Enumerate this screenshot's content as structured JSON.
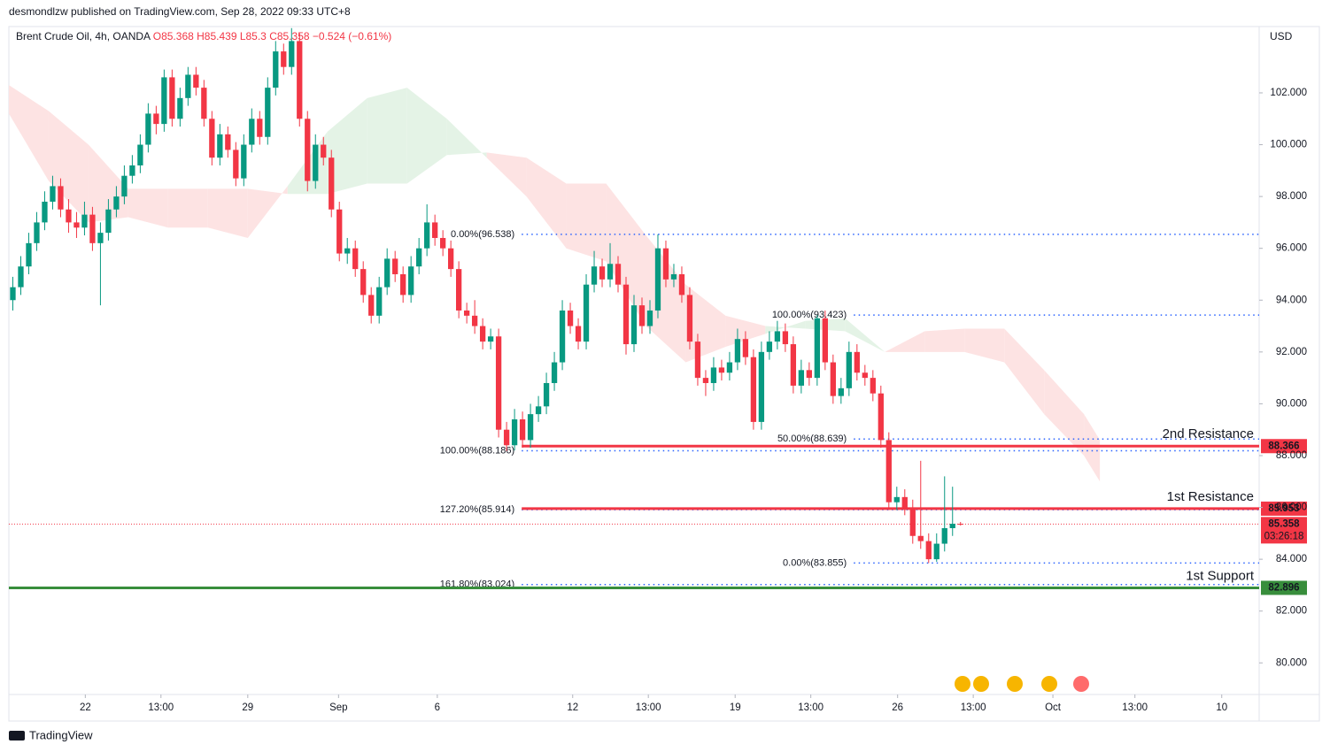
{
  "chart_data": {
    "type": "candlestick",
    "publisher": "desmondlzw published on TradingView.com, Sep 28, 2022 09:33 UTC+8",
    "symbol": "Brent Crude Oil, 4h, OANDA",
    "ohlc_text": "O85.368 H85.439 L85.3 C85.358",
    "change_text": "−0.524 (−0.61%)",
    "currency": "USD",
    "brand": "TradingView",
    "up_color": "#089981",
    "down_color": "#f23645",
    "xlim": [
      0,
      157
    ],
    "ylim": [
      78.78,
      104.56
    ],
    "yticks": [
      {
        "value": 80,
        "label": "80.000"
      },
      {
        "value": 82,
        "label": "82.000"
      },
      {
        "value": 84,
        "label": "84.000"
      },
      {
        "value": 86,
        "label": "86.000"
      },
      {
        "value": 88,
        "label": "88.000"
      },
      {
        "value": 90,
        "label": "90.000"
      },
      {
        "value": 92,
        "label": "92.000"
      },
      {
        "value": 94,
        "label": "94.000"
      },
      {
        "value": 96,
        "label": "96.000"
      },
      {
        "value": 98,
        "label": "98.000"
      },
      {
        "value": 100,
        "label": "100.000"
      },
      {
        "value": 102,
        "label": "102.000"
      }
    ],
    "xticks": [
      {
        "value": 9.6,
        "label": "22"
      },
      {
        "value": 19.1,
        "label": "13:00"
      },
      {
        "value": 30,
        "label": "29"
      },
      {
        "value": 41.4,
        "label": "Sep"
      },
      {
        "value": 53.8,
        "label": "6"
      },
      {
        "value": 70.8,
        "label": "12"
      },
      {
        "value": 80.3,
        "label": "13:00"
      },
      {
        "value": 91.2,
        "label": "19"
      },
      {
        "value": 100.7,
        "label": "13:00"
      },
      {
        "value": 111.6,
        "label": "26"
      },
      {
        "value": 121.1,
        "label": "13:00"
      },
      {
        "value": 131.1,
        "label": "Oct"
      },
      {
        "value": 141.4,
        "label": "13:00"
      },
      {
        "value": 152.3,
        "label": "10"
      }
    ],
    "candles": [
      [
        94.0,
        94.9,
        93.6,
        94.5
      ],
      [
        94.5,
        95.7,
        94.2,
        95.3
      ],
      [
        95.3,
        96.6,
        95.0,
        96.2
      ],
      [
        96.2,
        97.4,
        95.9,
        97.0
      ],
      [
        97.0,
        98.2,
        96.7,
        97.8
      ],
      [
        97.8,
        98.8,
        97.5,
        98.4
      ],
      [
        98.4,
        98.7,
        97.2,
        97.5
      ],
      [
        97.5,
        97.9,
        96.6,
        97.0
      ],
      [
        97.0,
        97.4,
        96.4,
        96.8
      ],
      [
        96.8,
        97.8,
        96.5,
        97.3
      ],
      [
        97.3,
        97.6,
        95.9,
        96.2
      ],
      [
        96.2,
        97.0,
        93.8,
        96.6
      ],
      [
        96.6,
        97.9,
        96.3,
        97.5
      ],
      [
        97.5,
        98.4,
        97.2,
        98.0
      ],
      [
        98.0,
        99.2,
        97.7,
        98.8
      ],
      [
        98.8,
        99.6,
        98.5,
        99.2
      ],
      [
        99.2,
        100.4,
        98.9,
        100.0
      ],
      [
        100.0,
        101.6,
        99.7,
        101.2
      ],
      [
        101.2,
        101.5,
        100.4,
        100.8
      ],
      [
        100.8,
        102.9,
        100.5,
        102.6
      ],
      [
        102.6,
        102.9,
        100.7,
        101.0
      ],
      [
        101.0,
        102.2,
        100.7,
        101.8
      ],
      [
        101.8,
        103.0,
        101.5,
        102.7
      ],
      [
        102.7,
        103.0,
        101.9,
        102.2
      ],
      [
        102.2,
        102.5,
        100.7,
        101.0
      ],
      [
        101.0,
        101.3,
        99.2,
        99.5
      ],
      [
        99.5,
        100.8,
        99.2,
        100.4
      ],
      [
        100.4,
        100.7,
        99.5,
        99.8
      ],
      [
        99.8,
        100.1,
        98.4,
        98.7
      ],
      [
        98.7,
        100.4,
        98.4,
        100.0
      ],
      [
        100.0,
        101.4,
        99.7,
        101.0
      ],
      [
        101.0,
        101.3,
        100.0,
        100.3
      ],
      [
        100.3,
        102.6,
        100.0,
        102.2
      ],
      [
        102.2,
        104.0,
        101.9,
        103.6
      ],
      [
        103.6,
        103.9,
        102.7,
        103.0
      ],
      [
        103.0,
        104.5,
        102.7,
        104.0
      ],
      [
        104.0,
        104.3,
        100.7,
        101.0
      ],
      [
        101.0,
        101.3,
        98.2,
        98.6
      ],
      [
        98.6,
        100.4,
        98.3,
        100.0
      ],
      [
        100.0,
        100.3,
        99.2,
        99.5
      ],
      [
        99.5,
        99.8,
        97.2,
        97.5
      ],
      [
        97.5,
        97.8,
        95.5,
        95.8
      ],
      [
        95.8,
        96.4,
        95.4,
        96.0
      ],
      [
        96.0,
        96.3,
        94.9,
        95.2
      ],
      [
        95.2,
        95.5,
        93.9,
        94.2
      ],
      [
        94.2,
        94.5,
        93.1,
        93.4
      ],
      [
        93.4,
        94.9,
        93.1,
        94.5
      ],
      [
        94.5,
        96.0,
        94.2,
        95.6
      ],
      [
        95.6,
        95.9,
        94.7,
        95.0
      ],
      [
        95.0,
        95.3,
        93.9,
        94.2
      ],
      [
        94.2,
        95.7,
        93.9,
        95.3
      ],
      [
        95.3,
        96.4,
        95.0,
        96.0
      ],
      [
        96.0,
        97.7,
        95.7,
        97.0
      ],
      [
        97.0,
        97.3,
        96.1,
        96.4
      ],
      [
        96.4,
        96.7,
        95.7,
        96.0
      ],
      [
        96.0,
        96.3,
        94.9,
        95.2
      ],
      [
        95.2,
        95.5,
        93.3,
        93.6
      ],
      [
        93.6,
        93.9,
        93.1,
        93.4
      ],
      [
        93.4,
        94.0,
        92.7,
        93.0
      ],
      [
        93.0,
        93.3,
        92.1,
        92.4
      ],
      [
        92.4,
        92.9,
        92.1,
        92.6
      ],
      [
        92.6,
        92.9,
        88.7,
        89.0
      ],
      [
        89.0,
        89.3,
        88.18,
        88.4
      ],
      [
        88.4,
        89.8,
        88.2,
        89.4
      ],
      [
        89.4,
        89.7,
        88.3,
        88.6
      ],
      [
        88.6,
        90.0,
        88.3,
        89.6
      ],
      [
        89.6,
        90.3,
        89.3,
        89.9
      ],
      [
        89.9,
        91.2,
        89.6,
        90.8
      ],
      [
        90.8,
        92.0,
        90.5,
        91.6
      ],
      [
        91.6,
        94.0,
        91.3,
        93.6
      ],
      [
        93.6,
        93.9,
        92.7,
        93.0
      ],
      [
        93.0,
        93.3,
        92.1,
        92.4
      ],
      [
        92.4,
        95.0,
        92.1,
        94.6
      ],
      [
        94.6,
        95.9,
        94.3,
        95.3
      ],
      [
        95.3,
        95.6,
        94.5,
        94.8
      ],
      [
        94.8,
        96.2,
        94.5,
        95.4
      ],
      [
        95.4,
        95.7,
        94.3,
        94.6
      ],
      [
        94.6,
        94.9,
        91.9,
        92.3
      ],
      [
        92.3,
        94.2,
        92.0,
        93.8
      ],
      [
        93.8,
        94.1,
        92.7,
        93.0
      ],
      [
        93.0,
        94.0,
        92.7,
        93.6
      ],
      [
        93.6,
        96.54,
        93.3,
        96.0
      ],
      [
        96.0,
        96.3,
        94.5,
        94.8
      ],
      [
        94.8,
        95.4,
        94.5,
        95.0
      ],
      [
        95.0,
        95.3,
        93.9,
        94.2
      ],
      [
        94.2,
        94.5,
        92.1,
        92.4
      ],
      [
        92.4,
        92.7,
        90.7,
        91.0
      ],
      [
        91.0,
        91.3,
        90.3,
        90.8
      ],
      [
        90.8,
        91.8,
        90.5,
        91.4
      ],
      [
        91.4,
        91.7,
        90.9,
        91.2
      ],
      [
        91.2,
        92.0,
        90.9,
        91.6
      ],
      [
        91.6,
        92.9,
        91.3,
        92.5
      ],
      [
        92.5,
        92.8,
        91.5,
        91.8
      ],
      [
        91.8,
        92.1,
        89.0,
        89.3
      ],
      [
        89.3,
        92.4,
        89.0,
        92.0
      ],
      [
        92.0,
        92.8,
        91.7,
        92.4
      ],
      [
        92.4,
        93.2,
        92.1,
        92.8
      ],
      [
        92.8,
        93.1,
        92.0,
        92.3
      ],
      [
        92.3,
        92.6,
        90.4,
        90.7
      ],
      [
        90.7,
        91.7,
        90.4,
        91.3
      ],
      [
        91.3,
        91.6,
        90.7,
        91.0
      ],
      [
        91.0,
        93.42,
        90.7,
        93.3
      ],
      [
        93.3,
        93.6,
        91.3,
        91.6
      ],
      [
        91.6,
        91.9,
        90.0,
        90.3
      ],
      [
        90.3,
        91.0,
        90.0,
        90.6
      ],
      [
        90.6,
        92.4,
        90.3,
        92.0
      ],
      [
        92.0,
        92.3,
        90.9,
        91.2
      ],
      [
        91.2,
        91.5,
        90.7,
        91.0
      ],
      [
        91.0,
        91.3,
        90.1,
        90.4
      ],
      [
        90.4,
        90.7,
        88.3,
        88.6
      ],
      [
        88.6,
        88.9,
        85.9,
        86.2
      ],
      [
        86.2,
        86.8,
        85.9,
        86.4
      ],
      [
        86.4,
        86.7,
        85.7,
        86.0
      ],
      [
        86.0,
        86.3,
        84.6,
        84.9
      ],
      [
        84.9,
        87.8,
        84.4,
        84.7
      ],
      [
        84.7,
        85.0,
        83.855,
        84.0
      ],
      [
        84.0,
        85.0,
        83.9,
        84.6
      ],
      [
        84.6,
        87.2,
        84.3,
        85.2
      ],
      [
        85.2,
        86.8,
        84.9,
        85.368
      ],
      [
        85.368,
        85.439,
        85.3,
        85.358
      ]
    ],
    "cloud": {
      "x": [
        0,
        5,
        10,
        15,
        20,
        25,
        30,
        35,
        40,
        45,
        50,
        55,
        60,
        65,
        70,
        75,
        80,
        85,
        90,
        95,
        100,
        105,
        110,
        115,
        120,
        125,
        130,
        135,
        137
      ],
      "span_a": [
        101.2,
        98.6,
        97.0,
        97.2,
        96.8,
        96.8,
        96.4,
        98.4,
        100.5,
        101.8,
        102.2,
        101.0,
        99.5,
        98.0,
        96.0,
        95.5,
        93.0,
        91.6,
        92.2,
        92.7,
        93.2,
        93.3,
        92.0,
        92.0,
        92.0,
        91.6,
        89.6,
        88.0,
        87.0
      ],
      "span_b": [
        102.3,
        101.3,
        100.0,
        98.3,
        98.3,
        98.3,
        98.3,
        98.1,
        98.1,
        98.5,
        98.5,
        99.6,
        99.7,
        99.5,
        98.5,
        98.5,
        96.5,
        94.6,
        93.4,
        93.0,
        92.9,
        92.8,
        92.0,
        92.8,
        92.9,
        92.9,
        91.3,
        89.6,
        88.6
      ],
      "up_color": "#e4f3e6",
      "down_color": "#fde3e3"
    },
    "levels": [
      {
        "name": "2nd Resistance",
        "value": 88.366,
        "x": 64.4,
        "color": "#f23645"
      },
      {
        "name": "1st Resistance",
        "value": 85.953,
        "x": 64.4,
        "color": "#f23645"
      },
      {
        "name": "1st Support",
        "value": 82.896,
        "x": 0,
        "color": "#388e3c"
      }
    ],
    "fib_color": "#2962ff",
    "fibs": [
      {
        "label": "0.00%(96.538)",
        "value": 96.538,
        "x": 64.4
      },
      {
        "label": "100.00%(93.423)",
        "value": 93.423,
        "x": 106.1
      },
      {
        "label": "50.00%(88.639)",
        "value": 88.639,
        "x": 106.1
      },
      {
        "label": "100.00%(88.186)",
        "value": 88.186,
        "x": 64.4
      },
      {
        "label": "127.20%(85.914)",
        "value": 85.914,
        "x": 64.4
      },
      {
        "label": "0.00%(83.855)",
        "value": 83.855,
        "x": 106.1
      },
      {
        "label": "161.80%(83.024)",
        "value": 83.024,
        "x": 64.4
      }
    ],
    "last_price": {
      "value": 85.358,
      "countdown": "03:26:18",
      "color": "#f23645"
    }
  }
}
